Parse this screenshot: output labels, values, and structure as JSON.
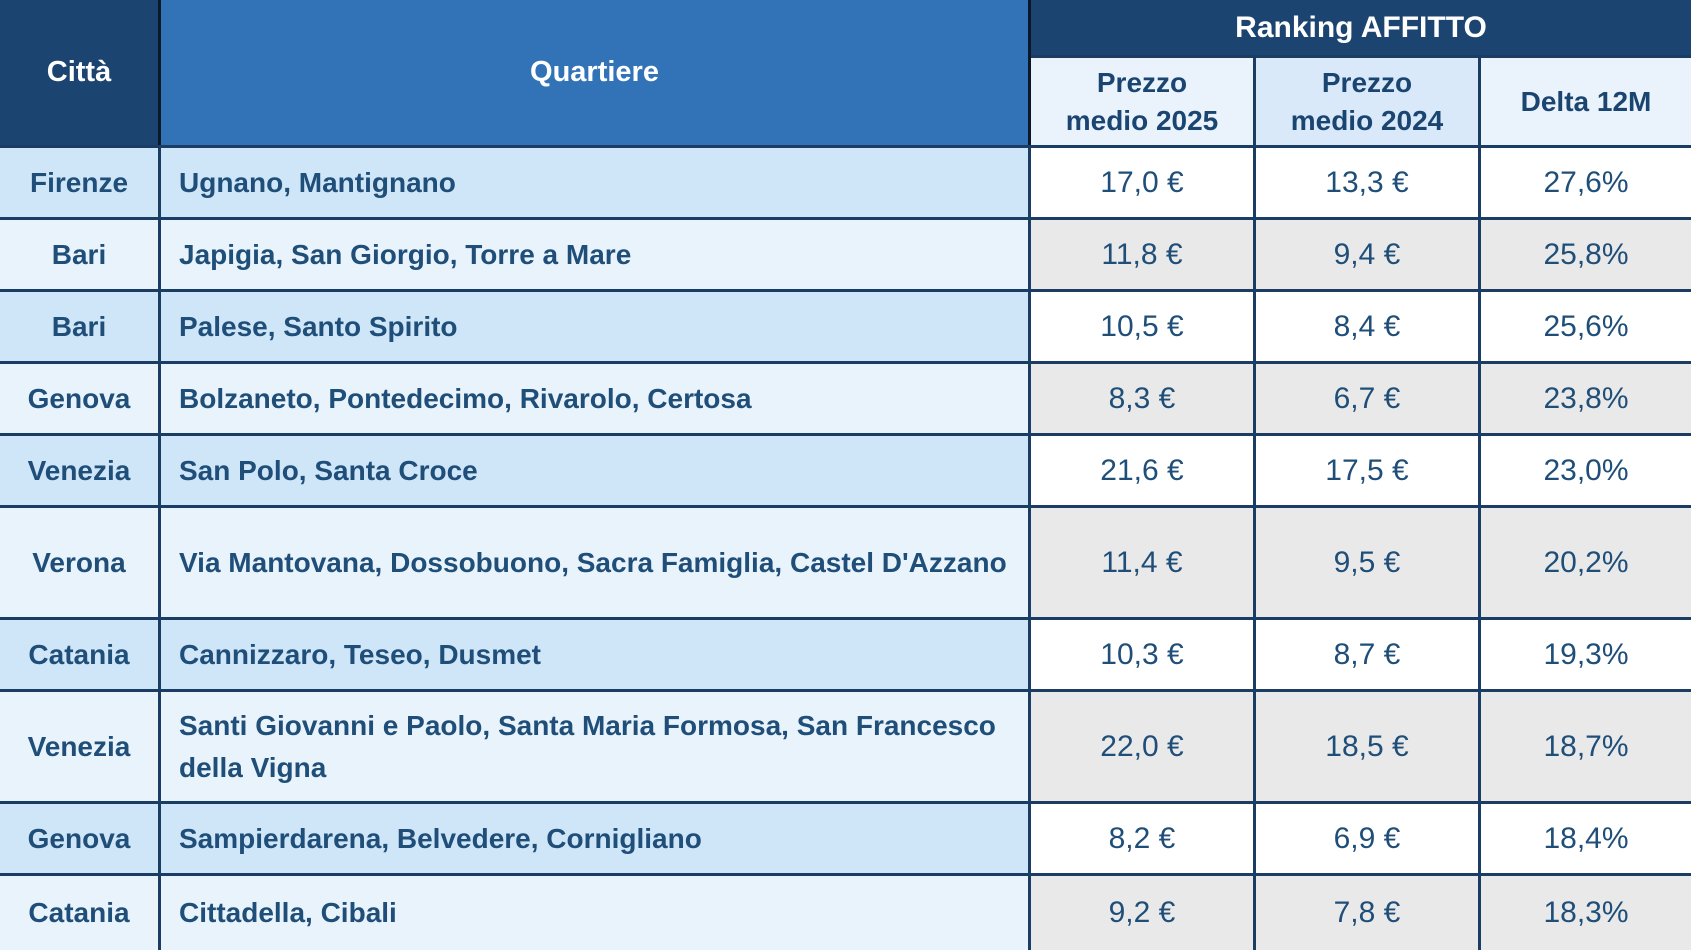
{
  "table": {
    "header": {
      "citta": "Città",
      "quartiere": "Quartiere",
      "ranking_title": "Ranking AFFITTO",
      "prezzo_2025": {
        "line1": "Prezzo",
        "line2": "medio 2025"
      },
      "prezzo_2024": {
        "line1": "Prezzo",
        "line2": "medio 2024"
      },
      "delta": "Delta 12M"
    },
    "rows": [
      {
        "citta": "Firenze",
        "quartiere": "Ugnano, Mantignano",
        "p2025": "17,0 €",
        "p2024": "13,3 €",
        "delta": "27,6%"
      },
      {
        "citta": "Bari",
        "quartiere": "Japigia, San Giorgio, Torre a Mare",
        "p2025": "11,8 €",
        "p2024": "9,4 €",
        "delta": "25,8%"
      },
      {
        "citta": "Bari",
        "quartiere": "Palese, Santo Spirito",
        "p2025": "10,5 €",
        "p2024": "8,4 €",
        "delta": "25,6%"
      },
      {
        "citta": "Genova",
        "quartiere": "Bolzaneto, Pontedecimo, Rivarolo, Certosa",
        "p2025": "8,3 €",
        "p2024": "6,7 €",
        "delta": "23,8%"
      },
      {
        "citta": "Venezia",
        "quartiere": "San Polo, Santa Croce",
        "p2025": "21,6 €",
        "p2024": "17,5 €",
        "delta": "23,0%"
      },
      {
        "citta": "Verona",
        "quartiere": "Via Mantovana, Dossobuono, Sacra Famiglia, Castel D'Azzano",
        "p2025": "11,4 €",
        "p2024": "9,5 €",
        "delta": "20,2%"
      },
      {
        "citta": "Catania",
        "quartiere": "Cannizzaro, Teseo, Dusmet",
        "p2025": "10,3 €",
        "p2024": "8,7 €",
        "delta": "19,3%"
      },
      {
        "citta": "Venezia",
        "quartiere": "Santi Giovanni e Paolo, Santa Maria Formosa, San Francesco della Vigna",
        "p2025": "22,0 €",
        "p2024": "18,5 €",
        "delta": "18,7%"
      },
      {
        "citta": "Genova",
        "quartiere": "Sampierdarena, Belvedere, Cornigliano",
        "p2025": "8,2 €",
        "p2024": "6,9 €",
        "delta": "18,4%"
      },
      {
        "citta": "Catania",
        "quartiere": "Cittadella, Cibali",
        "p2025": "9,2 €",
        "p2024": "7,8 €",
        "delta": "18,3%"
      }
    ]
  },
  "colors": {
    "header_dark": "#1C4470",
    "header_blue": "#3273B8",
    "subheader_light": "#EAF3FB",
    "subheader_2024": "#D9E9FA",
    "row_odd_blue": "#CFE5F8",
    "row_even_light": "#E9F3FC",
    "num_odd": "#FFFFFF",
    "num_even": "#E9E9E9",
    "text_navy": "#1F4E79",
    "border_navy": "#1B3C63",
    "header_divider": "#0A1828"
  },
  "chart_data": {
    "type": "table",
    "title": "Ranking AFFITTO",
    "columns": [
      "Città",
      "Quartiere",
      "Prezzo medio 2025",
      "Prezzo medio 2024",
      "Delta 12M"
    ],
    "rows": [
      {
        "citta": "Firenze",
        "quartiere": "Ugnano, Mantignano",
        "prezzo_medio_2025_eur": 17.0,
        "prezzo_medio_2024_eur": 13.3,
        "delta_12m_pct": 27.6
      },
      {
        "citta": "Bari",
        "quartiere": "Japigia, San Giorgio, Torre a Mare",
        "prezzo_medio_2025_eur": 11.8,
        "prezzo_medio_2024_eur": 9.4,
        "delta_12m_pct": 25.8
      },
      {
        "citta": "Bari",
        "quartiere": "Palese, Santo Spirito",
        "prezzo_medio_2025_eur": 10.5,
        "prezzo_medio_2024_eur": 8.4,
        "delta_12m_pct": 25.6
      },
      {
        "citta": "Genova",
        "quartiere": "Bolzaneto, Pontedecimo, Rivarolo, Certosa",
        "prezzo_medio_2025_eur": 8.3,
        "prezzo_medio_2024_eur": 6.7,
        "delta_12m_pct": 23.8
      },
      {
        "citta": "Venezia",
        "quartiere": "San Polo, Santa Croce",
        "prezzo_medio_2025_eur": 21.6,
        "prezzo_medio_2024_eur": 17.5,
        "delta_12m_pct": 23.0
      },
      {
        "citta": "Verona",
        "quartiere": "Via Mantovana, Dossobuono, Sacra Famiglia, Castel D'Azzano",
        "prezzo_medio_2025_eur": 11.4,
        "prezzo_medio_2024_eur": 9.5,
        "delta_12m_pct": 20.2
      },
      {
        "citta": "Catania",
        "quartiere": "Cannizzaro, Teseo, Dusmet",
        "prezzo_medio_2025_eur": 10.3,
        "prezzo_medio_2024_eur": 8.7,
        "delta_12m_pct": 19.3
      },
      {
        "citta": "Venezia",
        "quartiere": "Santi Giovanni e Paolo, Santa Maria Formosa, San Francesco della Vigna",
        "prezzo_medio_2025_eur": 22.0,
        "prezzo_medio_2024_eur": 18.5,
        "delta_12m_pct": 18.7
      },
      {
        "citta": "Genova",
        "quartiere": "Sampierdarena, Belvedere, Cornigliano",
        "prezzo_medio_2025_eur": 8.2,
        "prezzo_medio_2024_eur": 6.9,
        "delta_12m_pct": 18.4
      },
      {
        "citta": "Catania",
        "quartiere": "Cittadella, Cibali",
        "prezzo_medio_2025_eur": 9.2,
        "prezzo_medio_2024_eur": 7.8,
        "delta_12m_pct": 18.3
      }
    ]
  }
}
